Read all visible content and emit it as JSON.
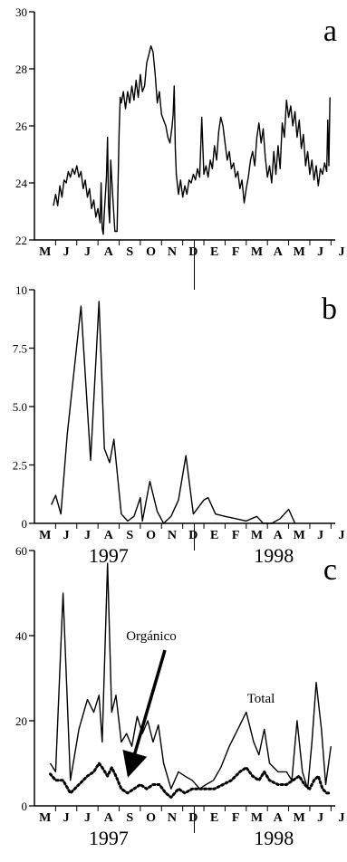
{
  "figure": {
    "month_labels": [
      "M",
      "J",
      "J",
      "A",
      "S",
      "O",
      "N",
      "D",
      "E",
      "F",
      "M",
      "A",
      "M",
      "J",
      "J"
    ],
    "year_labels": [
      "1997",
      "1998"
    ]
  },
  "chart_data": [
    {
      "type": "line",
      "panel_label": "a",
      "ylim": [
        22,
        30
      ],
      "yticks": [
        22,
        24,
        26,
        28,
        30
      ],
      "ytick_labels": [
        "22",
        "24",
        "26",
        "28",
        "30"
      ],
      "grid": false,
      "series": [
        {
          "values": [
            [
              0.9,
              23.2
            ],
            [
              1.0,
              23.6
            ],
            [
              1.1,
              23.2
            ],
            [
              1.2,
              23.9
            ],
            [
              1.3,
              23.5
            ],
            [
              1.4,
              24.1
            ],
            [
              1.5,
              24.0
            ],
            [
              1.6,
              24.4
            ],
            [
              1.7,
              24.2
            ],
            [
              1.8,
              24.5
            ],
            [
              1.9,
              24.3
            ],
            [
              2.0,
              24.6
            ],
            [
              2.1,
              24.2
            ],
            [
              2.2,
              24.4
            ],
            [
              2.3,
              23.8
            ],
            [
              2.4,
              24.1
            ],
            [
              2.5,
              23.5
            ],
            [
              2.6,
              23.8
            ],
            [
              2.7,
              23.1
            ],
            [
              2.8,
              23.4
            ],
            [
              2.9,
              22.8
            ],
            [
              3.0,
              23.1
            ],
            [
              3.1,
              22.6
            ],
            [
              3.15,
              24.0
            ],
            [
              3.2,
              22.4
            ],
            [
              3.25,
              22.2
            ],
            [
              3.3,
              23.0
            ],
            [
              3.4,
              24.2
            ],
            [
              3.45,
              25.6
            ],
            [
              3.5,
              23.2
            ],
            [
              3.55,
              22.6
            ],
            [
              3.6,
              24.8
            ],
            [
              3.7,
              23.5
            ],
            [
              3.8,
              22.3
            ],
            [
              3.9,
              22.3
            ],
            [
              4.0,
              25.8
            ],
            [
              4.05,
              27.0
            ],
            [
              4.1,
              26.8
            ],
            [
              4.2,
              27.2
            ],
            [
              4.3,
              26.6
            ],
            [
              4.4,
              27.2
            ],
            [
              4.5,
              26.8
            ],
            [
              4.6,
              27.4
            ],
            [
              4.7,
              26.9
            ],
            [
              4.8,
              27.6
            ],
            [
              4.9,
              27.0
            ],
            [
              5.0,
              27.8
            ],
            [
              5.1,
              27.2
            ],
            [
              5.2,
              27.4
            ],
            [
              5.3,
              28.2
            ],
            [
              5.4,
              28.5
            ],
            [
              5.5,
              28.8
            ],
            [
              5.6,
              28.6
            ],
            [
              5.7,
              27.8
            ],
            [
              5.8,
              26.8
            ],
            [
              5.9,
              27.2
            ],
            [
              6.0,
              26.4
            ],
            [
              6.1,
              26.2
            ],
            [
              6.2,
              26.0
            ],
            [
              6.3,
              25.6
            ],
            [
              6.4,
              25.4
            ],
            [
              6.5,
              26.0
            ],
            [
              6.55,
              26.4
            ],
            [
              6.6,
              27.4
            ],
            [
              6.65,
              25.2
            ],
            [
              6.7,
              24.3
            ],
            [
              6.8,
              23.6
            ],
            [
              6.9,
              24.1
            ],
            [
              7.0,
              23.5
            ],
            [
              7.1,
              23.9
            ],
            [
              7.2,
              23.6
            ],
            [
              7.3,
              24.1
            ],
            [
              7.4,
              24.0
            ],
            [
              7.5,
              24.3
            ],
            [
              7.6,
              24.1
            ],
            [
              7.7,
              24.5
            ],
            [
              7.8,
              24.2
            ],
            [
              7.9,
              26.3
            ],
            [
              8.0,
              24.3
            ],
            [
              8.1,
              24.6
            ],
            [
              8.2,
              24.2
            ],
            [
              8.3,
              24.8
            ],
            [
              8.4,
              24.5
            ],
            [
              8.5,
              25.3
            ],
            [
              8.6,
              24.8
            ],
            [
              8.7,
              25.8
            ],
            [
              8.8,
              26.3
            ],
            [
              8.9,
              26.0
            ],
            [
              9.0,
              25.4
            ],
            [
              9.1,
              24.8
            ],
            [
              9.2,
              25.1
            ],
            [
              9.3,
              24.5
            ],
            [
              9.4,
              24.7
            ],
            [
              9.5,
              24.2
            ],
            [
              9.6,
              24.4
            ],
            [
              9.7,
              23.8
            ],
            [
              9.8,
              24.1
            ],
            [
              9.9,
              23.3
            ],
            [
              10.0,
              23.8
            ],
            [
              10.1,
              24.2
            ],
            [
              10.2,
              24.8
            ],
            [
              10.3,
              25.1
            ],
            [
              10.4,
              24.6
            ],
            [
              10.5,
              25.6
            ],
            [
              10.6,
              26.1
            ],
            [
              10.7,
              25.4
            ],
            [
              10.8,
              25.9
            ],
            [
              10.9,
              24.9
            ],
            [
              11.0,
              24.2
            ],
            [
              11.1,
              24.6
            ],
            [
              11.2,
              24.0
            ],
            [
              11.3,
              25.1
            ],
            [
              11.4,
              24.3
            ],
            [
              11.5,
              25.3
            ],
            [
              11.6,
              24.5
            ],
            [
              11.7,
              26.1
            ],
            [
              11.8,
              25.6
            ],
            [
              11.9,
              26.9
            ],
            [
              12.0,
              26.3
            ],
            [
              12.1,
              26.7
            ],
            [
              12.2,
              26.0
            ],
            [
              12.3,
              26.5
            ],
            [
              12.4,
              25.6
            ],
            [
              12.5,
              26.2
            ],
            [
              12.6,
              25.2
            ],
            [
              12.7,
              25.7
            ],
            [
              12.8,
              24.6
            ],
            [
              12.9,
              25.1
            ],
            [
              13.0,
              24.3
            ],
            [
              13.1,
              24.8
            ],
            [
              13.2,
              24.1
            ],
            [
              13.3,
              24.6
            ],
            [
              13.4,
              23.9
            ],
            [
              13.5,
              24.5
            ],
            [
              13.6,
              24.3
            ],
            [
              13.7,
              24.7
            ],
            [
              13.8,
              24.4
            ],
            [
              13.85,
              26.2
            ],
            [
              13.9,
              24.6
            ],
            [
              13.95,
              27.0
            ]
          ]
        }
      ]
    },
    {
      "type": "line",
      "panel_label": "b",
      "ylim": [
        0,
        10
      ],
      "yticks": [
        0,
        2.5,
        5,
        7.5,
        10
      ],
      "ytick_labels": [
        "0",
        "2.5",
        "5.0",
        "7.5",
        "10"
      ],
      "grid": false,
      "series": [
        {
          "values": [
            [
              0.8,
              0.8
            ],
            [
              1.0,
              1.2
            ],
            [
              1.25,
              0.4
            ],
            [
              1.55,
              3.8
            ],
            [
              2.2,
              9.3
            ],
            [
              2.65,
              2.7
            ],
            [
              3.05,
              9.5
            ],
            [
              3.3,
              3.2
            ],
            [
              3.55,
              2.6
            ],
            [
              3.75,
              3.6
            ],
            [
              4.1,
              0.4
            ],
            [
              4.4,
              0.1
            ],
            [
              4.7,
              0.3
            ],
            [
              5.0,
              1.1
            ],
            [
              5.1,
              0.1
            ],
            [
              5.45,
              1.8
            ],
            [
              5.8,
              0.5
            ],
            [
              6.1,
              0.0
            ],
            [
              6.45,
              0.3
            ],
            [
              6.8,
              1.0
            ],
            [
              7.15,
              2.9
            ],
            [
              7.5,
              0.4
            ],
            [
              8.0,
              1.0
            ],
            [
              8.2,
              1.1
            ],
            [
              8.55,
              0.4
            ],
            [
              9.0,
              0.3
            ],
            [
              9.5,
              0.2
            ],
            [
              10.0,
              0.1
            ],
            [
              10.5,
              0.3
            ],
            [
              10.8,
              0.0
            ],
            [
              11.2,
              0.0
            ],
            [
              11.6,
              0.2
            ],
            [
              12.0,
              0.6
            ],
            [
              12.3,
              0.0
            ]
          ]
        }
      ]
    },
    {
      "type": "line",
      "panel_label": "c",
      "ylim": [
        0,
        60
      ],
      "yticks": [
        0,
        20,
        40,
        60
      ],
      "ytick_labels": [
        "0",
        "20",
        "40",
        "60"
      ],
      "grid": false,
      "annotations": [
        "Orgánico",
        "Total"
      ],
      "series": [
        {
          "name": "Total",
          "values": [
            [
              0.75,
              10
            ],
            [
              1.0,
              8
            ],
            [
              1.35,
              50
            ],
            [
              1.7,
              6
            ],
            [
              2.1,
              18
            ],
            [
              2.5,
              25
            ],
            [
              2.8,
              22
            ],
            [
              3.05,
              26
            ],
            [
              3.2,
              15
            ],
            [
              3.45,
              57
            ],
            [
              3.65,
              22
            ],
            [
              3.85,
              26
            ],
            [
              4.1,
              15
            ],
            [
              4.35,
              17
            ],
            [
              4.6,
              14
            ],
            [
              4.85,
              21
            ],
            [
              5.1,
              17
            ],
            [
              5.35,
              20
            ],
            [
              5.6,
              15
            ],
            [
              5.85,
              19
            ],
            [
              6.1,
              10
            ],
            [
              6.45,
              4
            ],
            [
              6.8,
              8
            ],
            [
              7.1,
              7
            ],
            [
              7.45,
              6
            ],
            [
              7.8,
              4
            ],
            [
              8.1,
              5
            ],
            [
              8.45,
              6
            ],
            [
              8.8,
              9
            ],
            [
              9.2,
              14
            ],
            [
              9.6,
              18
            ],
            [
              10.0,
              22
            ],
            [
              10.35,
              15
            ],
            [
              10.6,
              12
            ],
            [
              10.85,
              18
            ],
            [
              11.1,
              10
            ],
            [
              11.5,
              8
            ],
            [
              11.9,
              8
            ],
            [
              12.15,
              6
            ],
            [
              12.4,
              20
            ],
            [
              12.65,
              8
            ],
            [
              12.9,
              4
            ],
            [
              13.1,
              15
            ],
            [
              13.3,
              29
            ],
            [
              13.55,
              18
            ],
            [
              13.75,
              5
            ],
            [
              14.0,
              14
            ]
          ]
        },
        {
          "name": "Orgánico",
          "values": [
            [
              0.75,
              7.5
            ],
            [
              1.0,
              6
            ],
            [
              1.35,
              6
            ],
            [
              1.7,
              3
            ],
            [
              2.1,
              5
            ],
            [
              2.5,
              7
            ],
            [
              2.8,
              8
            ],
            [
              3.05,
              10
            ],
            [
              3.2,
              9
            ],
            [
              3.45,
              7
            ],
            [
              3.65,
              9
            ],
            [
              3.85,
              7
            ],
            [
              4.1,
              4
            ],
            [
              4.4,
              3
            ],
            [
              4.7,
              4
            ],
            [
              5.0,
              5
            ],
            [
              5.3,
              4
            ],
            [
              5.6,
              5
            ],
            [
              5.9,
              5
            ],
            [
              6.2,
              3
            ],
            [
              6.45,
              2
            ],
            [
              6.8,
              4
            ],
            [
              7.1,
              3
            ],
            [
              7.45,
              4
            ],
            [
              7.8,
              4
            ],
            [
              8.1,
              4
            ],
            [
              8.5,
              4
            ],
            [
              8.9,
              5
            ],
            [
              9.3,
              6
            ],
            [
              9.7,
              8
            ],
            [
              10.0,
              9
            ],
            [
              10.3,
              7
            ],
            [
              10.6,
              6
            ],
            [
              10.85,
              8
            ],
            [
              11.1,
              6
            ],
            [
              11.5,
              5
            ],
            [
              11.9,
              5
            ],
            [
              12.2,
              6
            ],
            [
              12.5,
              7
            ],
            [
              12.75,
              5
            ],
            [
              13.0,
              4
            ],
            [
              13.2,
              6
            ],
            [
              13.4,
              7
            ],
            [
              13.6,
              4
            ],
            [
              13.8,
              3
            ],
            [
              14.0,
              3
            ]
          ]
        }
      ]
    }
  ]
}
